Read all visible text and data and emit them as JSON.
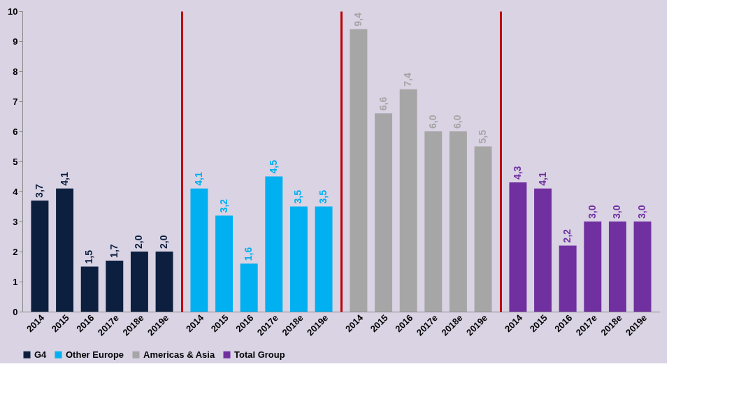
{
  "chart_data": [
    {
      "type": "bar",
      "categories": [
        "2014",
        "2015",
        "2016",
        "2017e",
        "2018e",
        "2019e"
      ],
      "series": [
        {
          "name": "G4",
          "color": "#0d1f3f",
          "values": [
            3.7,
            4.1,
            1.5,
            1.7,
            2.0,
            2.0
          ],
          "value_labels": [
            "3,7",
            "4,1",
            "1,5",
            "1,7",
            "2,0",
            "2,0"
          ]
        }
      ],
      "ylim": [
        0,
        10
      ],
      "yticks": [
        0,
        1,
        2,
        3,
        4,
        5,
        6,
        7,
        8,
        9,
        10
      ],
      "grid": false,
      "legend": "bottom"
    },
    {
      "type": "bar",
      "categories": [
        "2014",
        "2015",
        "2016",
        "2017e",
        "2018e",
        "2019e"
      ],
      "series": [
        {
          "name": "Other Europe",
          "color": "#00b0f0",
          "values": [
            4.1,
            3.2,
            1.6,
            4.5,
            3.5,
            3.5
          ],
          "value_labels": [
            "4,1",
            "3,2",
            "1,6",
            "4,5",
            "3,5",
            "3,5"
          ]
        }
      ],
      "ylim": [
        0,
        10
      ],
      "tick_labels": "x",
      "grid": false,
      "legend": "bottom"
    },
    {
      "type": "bar",
      "categories": [
        "2014",
        "2015",
        "2016",
        "2017e",
        "2018e",
        "2019e"
      ],
      "series": [
        {
          "name": "Americas & Asia",
          "color": "#a6a6a6",
          "values": [
            9.4,
            6.6,
            7.4,
            6.0,
            6.0,
            5.5
          ],
          "value_labels": [
            "9,4",
            "6,6",
            "7,4",
            "6,0",
            "6,0",
            "5,5"
          ]
        }
      ],
      "ylim": [
        0,
        10
      ],
      "tick_labels": "x",
      "grid": false,
      "legend": "bottom"
    },
    {
      "type": "bar",
      "categories": [
        "2014",
        "2015",
        "2016",
        "2017e",
        "2018e",
        "2019e"
      ],
      "series": [
        {
          "name": "Total Group",
          "color": "#7030a0",
          "values": [
            4.3,
            4.1,
            2.2,
            3.0,
            3.0,
            3.0
          ],
          "value_labels": [
            "4,3",
            "4,1",
            "2,2",
            "3,0",
            "3,0",
            "3,0"
          ]
        }
      ],
      "ylim": [
        0,
        10
      ],
      "tick_labels": "x",
      "grid": false,
      "legend": "bottom"
    }
  ]
}
